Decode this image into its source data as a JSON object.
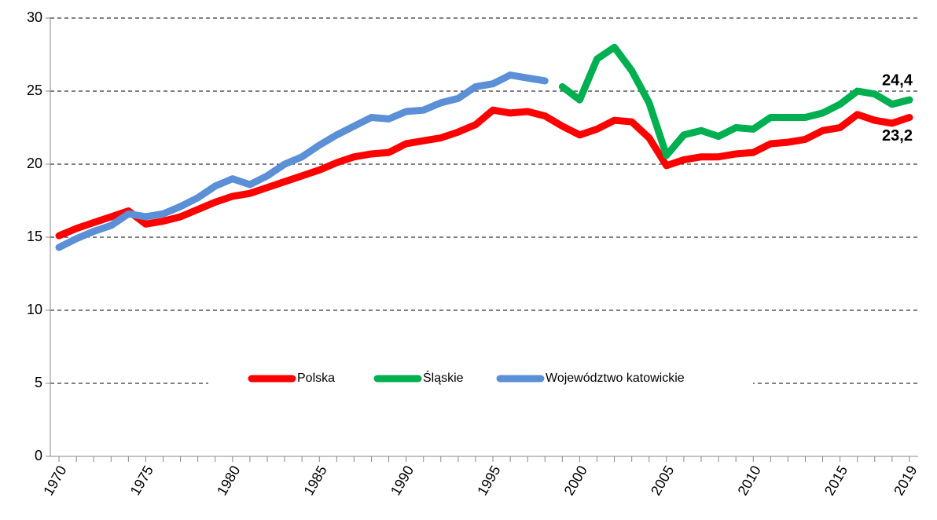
{
  "chart_data": {
    "type": "line",
    "x": [
      1970,
      1971,
      1972,
      1973,
      1974,
      1975,
      1976,
      1977,
      1978,
      1979,
      1980,
      1981,
      1982,
      1983,
      1984,
      1985,
      1986,
      1987,
      1988,
      1989,
      1990,
      1991,
      1992,
      1993,
      1994,
      1995,
      1996,
      1997,
      1998,
      1999,
      2000,
      2001,
      2002,
      2003,
      2004,
      2005,
      2006,
      2007,
      2008,
      2009,
      2010,
      2011,
      2012,
      2013,
      2014,
      2015,
      2016,
      2017,
      2018,
      2019
    ],
    "series": [
      {
        "name": "Polska",
        "color": "#ff0000",
        "values": [
          15.1,
          15.6,
          16.0,
          16.4,
          16.8,
          15.9,
          16.1,
          16.4,
          16.9,
          17.4,
          17.8,
          18.0,
          18.4,
          18.8,
          19.2,
          19.6,
          20.1,
          20.5,
          20.7,
          20.8,
          21.4,
          21.6,
          21.8,
          22.2,
          22.7,
          23.7,
          23.5,
          23.6,
          23.3,
          22.6,
          22.0,
          22.4,
          23.0,
          22.9,
          21.8,
          19.9,
          20.3,
          20.5,
          20.5,
          20.7,
          20.8,
          21.4,
          21.5,
          21.7,
          22.3,
          22.5,
          23.4,
          23.0,
          22.8,
          23.2
        ],
        "value_labels": [
          null,
          null,
          null,
          null,
          null,
          null,
          null,
          null,
          null,
          null,
          null,
          null,
          null,
          null,
          null,
          null,
          null,
          null,
          null,
          null,
          null,
          null,
          null,
          null,
          null,
          null,
          null,
          null,
          null,
          null,
          null,
          null,
          null,
          null,
          null,
          null,
          null,
          null,
          null,
          null,
          null,
          null,
          null,
          null,
          null,
          null,
          null,
          null,
          null,
          "23,2"
        ]
      },
      {
        "name": "Śląskie",
        "color": "#00b050",
        "values": [
          null,
          null,
          null,
          null,
          null,
          null,
          null,
          null,
          null,
          null,
          null,
          null,
          null,
          null,
          null,
          null,
          null,
          null,
          null,
          null,
          null,
          null,
          null,
          null,
          null,
          null,
          null,
          null,
          null,
          25.3,
          24.4,
          27.2,
          28.0,
          26.4,
          24.2,
          20.6,
          22.0,
          22.3,
          21.9,
          22.5,
          22.4,
          23.2,
          23.2,
          23.2,
          23.5,
          24.1,
          25.0,
          24.8,
          24.1,
          24.4
        ],
        "value_labels": [
          null,
          null,
          null,
          null,
          null,
          null,
          null,
          null,
          null,
          null,
          null,
          null,
          null,
          null,
          null,
          null,
          null,
          null,
          null,
          null,
          null,
          null,
          null,
          null,
          null,
          null,
          null,
          null,
          null,
          null,
          null,
          null,
          null,
          null,
          null,
          null,
          null,
          null,
          null,
          null,
          null,
          null,
          null,
          null,
          null,
          null,
          null,
          null,
          null,
          "24,4"
        ]
      },
      {
        "name": "Województwo katowickie",
        "color": "#5b8fd6",
        "values": [
          14.3,
          14.9,
          15.4,
          15.8,
          16.6,
          16.4,
          16.6,
          17.1,
          17.7,
          18.5,
          19.0,
          18.6,
          19.2,
          20.0,
          20.5,
          21.3,
          22.0,
          22.6,
          23.2,
          23.1,
          23.6,
          23.7,
          24.2,
          24.5,
          25.3,
          25.5,
          26.1,
          25.9,
          25.7,
          null,
          null,
          null,
          null,
          null,
          null,
          null,
          null,
          null,
          null,
          null,
          null,
          null,
          null,
          null,
          null,
          null,
          null,
          null,
          null,
          null
        ]
      }
    ],
    "xlim": [
      1969.5,
      2019.5
    ],
    "xticks": [
      1970,
      1975,
      1980,
      1985,
      1990,
      1995,
      2000,
      2005,
      2010,
      2015,
      2019
    ],
    "ylim": [
      0,
      30
    ],
    "yticks": [
      0,
      5,
      10,
      15,
      20,
      25,
      30
    ],
    "grid": true,
    "legend": "center"
  }
}
